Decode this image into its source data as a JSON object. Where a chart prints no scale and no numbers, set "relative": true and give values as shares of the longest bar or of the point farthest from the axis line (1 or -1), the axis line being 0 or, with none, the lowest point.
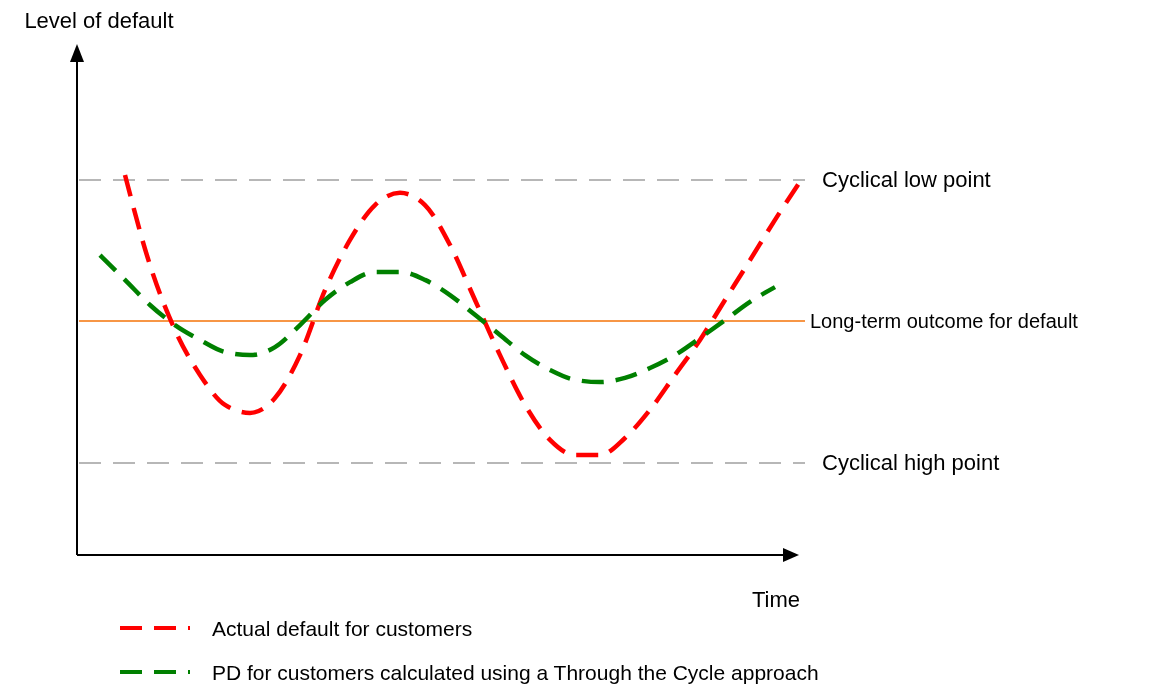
{
  "chart_data": {
    "type": "line",
    "relative": true,
    "annotations": [
      "Level of default"
    ],
    "xlabel": "Time",
    "line_style": "dashed",
    "legend": "bottom",
    "categories": [
      null,
      null,
      null,
      null,
      null,
      null,
      null,
      null,
      null,
      null,
      null,
      null,
      null,
      null,
      null,
      null,
      null,
      null,
      null,
      null,
      null,
      null,
      null,
      null,
      null,
      null,
      null,
      null,
      null
    ],
    "series": [
      {
        "name": "Actual  default for customers",
        "color": "#ff0000",
        "values": [
          null,
          1.0,
          0.763,
          0.592,
          0.474,
          0.395,
          0.374,
          0.413,
          0.526,
          0.697,
          0.829,
          0.921,
          0.953,
          0.921,
          0.816,
          0.671,
          0.526,
          0.395,
          0.303,
          0.263,
          0.263,
          0.308,
          0.382,
          0.474,
          0.566,
          0.671,
          0.776,
          0.882,
          0.982
        ]
      },
      {
        "name": "PD for customers calculated using a Through the Cycle approach",
        "color": "#008000",
        "values": [
          0.789,
          0.724,
          0.658,
          0.605,
          0.566,
          0.534,
          0.526,
          0.547,
          0.605,
          0.671,
          0.718,
          0.745,
          0.745,
          0.724,
          0.684,
          0.632,
          0.579,
          0.526,
          0.487,
          0.461,
          0.455,
          0.466,
          0.492,
          0.526,
          0.571,
          0.618,
          0.666,
          0.705,
          null
        ]
      }
    ],
    "ref_lines": [
      {
        "axis": "y",
        "value": 0.987,
        "label": "Cyclical low point",
        "color": "#a0a0a0",
        "line_style": "dashed"
      },
      {
        "axis": "y",
        "value": 0.616,
        "label": "Long-term outcome for default",
        "color": "#f79646",
        "line_style": "solid"
      },
      {
        "axis": "y",
        "value": 0.242,
        "label": "Cyclical high point",
        "color": "#a0a0a0",
        "line_style": "dashed"
      }
    ]
  }
}
